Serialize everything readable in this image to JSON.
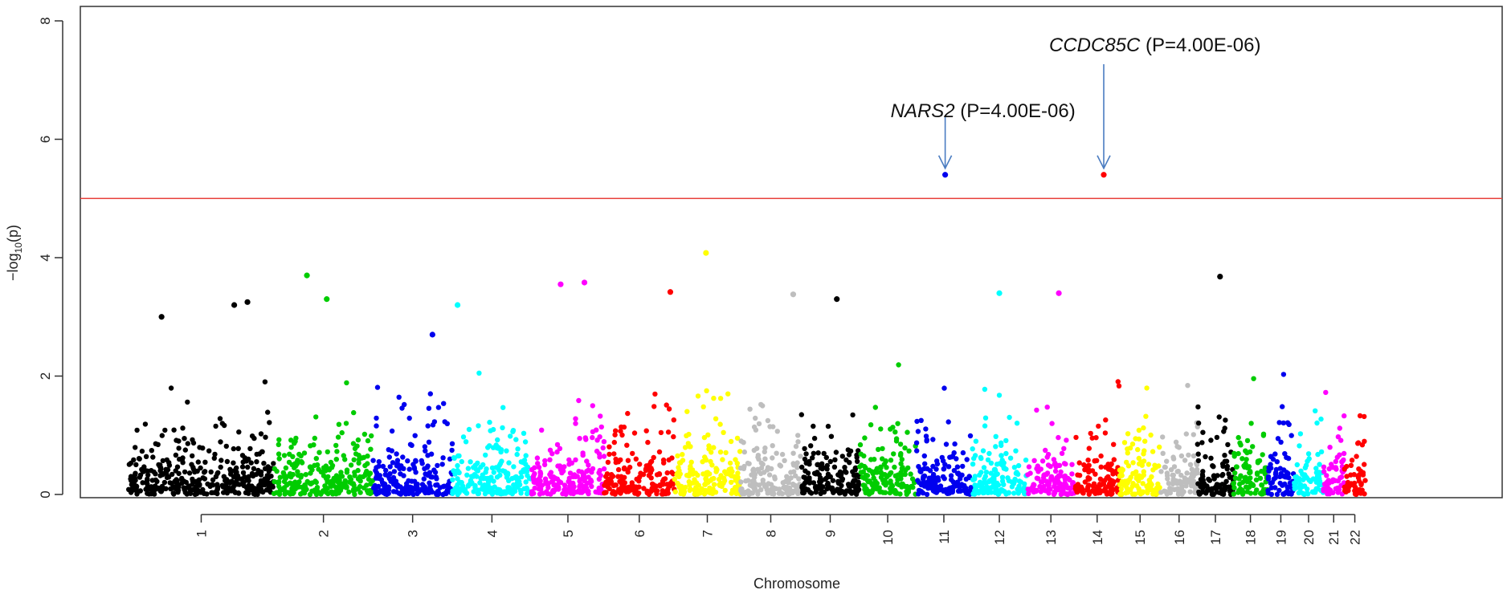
{
  "chart_data": {
    "type": "scatter",
    "title": "",
    "xlabel": "Chromosome",
    "ylabel_main": "−log",
    "ylabel_sub": "10",
    "ylabel_arg": "(p)",
    "ylim": [
      0,
      8
    ],
    "y_ticks": [
      0,
      2,
      4,
      6,
      8
    ],
    "grid": false,
    "legend": "none",
    "threshold": 5,
    "threshold_color": "#e8413c",
    "chromosomes": [
      {
        "label": "1",
        "start": 0.0,
        "end": 0.11,
        "color": "#000000"
      },
      {
        "label": "2",
        "start": 0.11,
        "end": 0.185,
        "color": "#00cc00"
      },
      {
        "label": "3",
        "start": 0.185,
        "end": 0.245,
        "color": "#0000ee"
      },
      {
        "label": "4",
        "start": 0.245,
        "end": 0.305,
        "color": "#00ffff"
      },
      {
        "label": "5",
        "start": 0.305,
        "end": 0.36,
        "color": "#ff00ff"
      },
      {
        "label": "6",
        "start": 0.36,
        "end": 0.413,
        "color": "#ff0000"
      },
      {
        "label": "7",
        "start": 0.413,
        "end": 0.463,
        "color": "#ffff00"
      },
      {
        "label": "8",
        "start": 0.463,
        "end": 0.509,
        "color": "#bebebe"
      },
      {
        "label": "9",
        "start": 0.509,
        "end": 0.553,
        "color": "#000000"
      },
      {
        "label": "10",
        "start": 0.553,
        "end": 0.596,
        "color": "#00cc00"
      },
      {
        "label": "11",
        "start": 0.596,
        "end": 0.638,
        "color": "#0000ee"
      },
      {
        "label": "12",
        "start": 0.638,
        "end": 0.68,
        "color": "#00ffff"
      },
      {
        "label": "13",
        "start": 0.68,
        "end": 0.716,
        "color": "#ff00ff"
      },
      {
        "label": "14",
        "start": 0.716,
        "end": 0.75,
        "color": "#ff0000"
      },
      {
        "label": "15",
        "start": 0.75,
        "end": 0.781,
        "color": "#ffff00"
      },
      {
        "label": "16",
        "start": 0.781,
        "end": 0.809,
        "color": "#bebebe"
      },
      {
        "label": "17",
        "start": 0.809,
        "end": 0.836,
        "color": "#000000"
      },
      {
        "label": "18",
        "start": 0.836,
        "end": 0.862,
        "color": "#00cc00"
      },
      {
        "label": "19",
        "start": 0.862,
        "end": 0.882,
        "color": "#0000ee"
      },
      {
        "label": "20",
        "start": 0.882,
        "end": 0.904,
        "color": "#00ffff"
      },
      {
        "label": "21",
        "start": 0.904,
        "end": 0.92,
        "color": "#ff00ff"
      },
      {
        "label": "22",
        "start": 0.92,
        "end": 0.936,
        "color": "#ff0000"
      }
    ],
    "highlight_points": [
      {
        "chromosome": "1",
        "pos": 0.025,
        "y": 3.0
      },
      {
        "chromosome": "1",
        "pos": 0.08,
        "y": 3.2
      },
      {
        "chromosome": "1",
        "pos": 0.09,
        "y": 3.25
      },
      {
        "chromosome": "2",
        "pos": 0.135,
        "y": 3.7
      },
      {
        "chromosome": "2",
        "pos": 0.15,
        "y": 3.3
      },
      {
        "chromosome": "3",
        "pos": 0.23,
        "y": 2.7
      },
      {
        "chromosome": "4",
        "pos": 0.249,
        "y": 3.2
      },
      {
        "chromosome": "5",
        "pos": 0.327,
        "y": 3.55
      },
      {
        "chromosome": "5",
        "pos": 0.345,
        "y": 3.58
      },
      {
        "chromosome": "6",
        "pos": 0.41,
        "y": 3.42
      },
      {
        "chromosome": "7",
        "pos": 0.437,
        "y": 4.08
      },
      {
        "chromosome": "8",
        "pos": 0.503,
        "y": 3.38
      },
      {
        "chromosome": "9",
        "pos": 0.536,
        "y": 3.3
      },
      {
        "chromosome": "11",
        "pos": 0.618,
        "y": 5.4
      },
      {
        "chromosome": "12",
        "pos": 0.659,
        "y": 3.4
      },
      {
        "chromosome": "13",
        "pos": 0.704,
        "y": 3.4
      },
      {
        "chromosome": "14",
        "pos": 0.738,
        "y": 5.4
      },
      {
        "chromosome": "17",
        "pos": 0.826,
        "y": 3.68
      }
    ],
    "annotations": [
      {
        "gene": "NARS2",
        "p_text": " (P=4.00E-06)",
        "pos": 0.618,
        "y": 5.4
      },
      {
        "gene": "CCDC85C",
        "p_text": " (P=4.00E-06)",
        "pos": 0.738,
        "y": 5.4
      }
    ],
    "arrow_color": "#4a7cc1"
  }
}
